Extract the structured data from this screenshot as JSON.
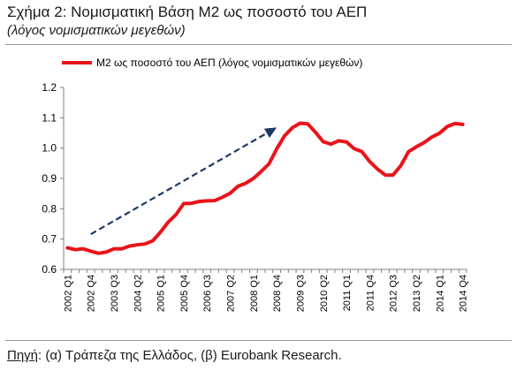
{
  "header": {
    "title": "Σχήμα 2: Νομισματική Βάση Μ2 ως ποσοστό του ΑΕΠ",
    "subtitle": "(λόγος νομισματικών μεγεθών)"
  },
  "footer": {
    "source_label": "Πηγή",
    "source_text": ": (α) Τράπεζα της Ελλάδος, (β) Eurobank Research."
  },
  "colors": {
    "series": "#e8141a",
    "trend_arrow": "#1f3864",
    "axis": "#808080"
  },
  "chart_data": {
    "type": "line",
    "title": "Σχήμα 2: Νομισματική Βάση Μ2 ως ποσοστό του ΑΕΠ",
    "subtitle": "(λόγος νομισματικών μεγεθών)",
    "xlabel": "",
    "ylabel": "",
    "ylim": [
      0.6,
      1.2
    ],
    "yticks": [
      "0.6",
      "0.7",
      "0.8",
      "0.9",
      "1.0",
      "1.1",
      "1.2"
    ],
    "grid": false,
    "legend": "top",
    "x_tick_labels": [
      "2002 Q1",
      "2002 Q4",
      "2003 Q3",
      "2004 Q2",
      "2005 Q1",
      "2005 Q4",
      "2006 Q3",
      "2007 Q2",
      "2008 Q1",
      "2008 Q4",
      "2009 Q3",
      "2010 Q2",
      "2011 Q1",
      "2011 Q4",
      "2012 Q3",
      "2013 Q2",
      "2014 Q1",
      "2014 Q4"
    ],
    "x": [
      "2002 Q1",
      "2002 Q2",
      "2002 Q3",
      "2002 Q4",
      "2003 Q1",
      "2003 Q2",
      "2003 Q3",
      "2003 Q4",
      "2004 Q1",
      "2004 Q2",
      "2004 Q3",
      "2004 Q4",
      "2005 Q1",
      "2005 Q2",
      "2005 Q3",
      "2005 Q4",
      "2006 Q1",
      "2006 Q2",
      "2006 Q3",
      "2006 Q4",
      "2007 Q1",
      "2007 Q2",
      "2007 Q3",
      "2007 Q4",
      "2008 Q1",
      "2008 Q2",
      "2008 Q3",
      "2008 Q4",
      "2009 Q1",
      "2009 Q2",
      "2009 Q3",
      "2009 Q4",
      "2010 Q1",
      "2010 Q2",
      "2010 Q3",
      "2010 Q4",
      "2011 Q1",
      "2011 Q2",
      "2011 Q3",
      "2011 Q4",
      "2012 Q1",
      "2012 Q2",
      "2012 Q3",
      "2012 Q4",
      "2013 Q1",
      "2013 Q2",
      "2013 Q3",
      "2013 Q4",
      "2014 Q1",
      "2014 Q2",
      "2014 Q3",
      "2014 Q4"
    ],
    "series": [
      {
        "name": "Μ2 ως ποσοστό του ΑΕΠ (λόγος νομισματικών μεγεθών)",
        "values": [
          0.671,
          0.665,
          0.668,
          0.66,
          0.653,
          0.657,
          0.668,
          0.668,
          0.677,
          0.681,
          0.684,
          0.694,
          0.723,
          0.756,
          0.781,
          0.817,
          0.818,
          0.824,
          0.826,
          0.827,
          0.838,
          0.851,
          0.874,
          0.884,
          0.9,
          0.923,
          0.948,
          0.998,
          1.04,
          1.067,
          1.082,
          1.08,
          1.052,
          1.021,
          1.013,
          1.024,
          1.02,
          0.998,
          0.988,
          0.955,
          0.931,
          0.911,
          0.911,
          0.942,
          0.988,
          1.004,
          1.018,
          1.036,
          1.049,
          1.071,
          1.081,
          1.078
        ]
      }
    ],
    "annotations": [
      {
        "type": "arrow",
        "style": "dashed",
        "from": {
          "x": "2002 Q4",
          "y": 0.716
        },
        "to": {
          "x": "2008 Q4",
          "y": 1.068
        }
      }
    ]
  }
}
